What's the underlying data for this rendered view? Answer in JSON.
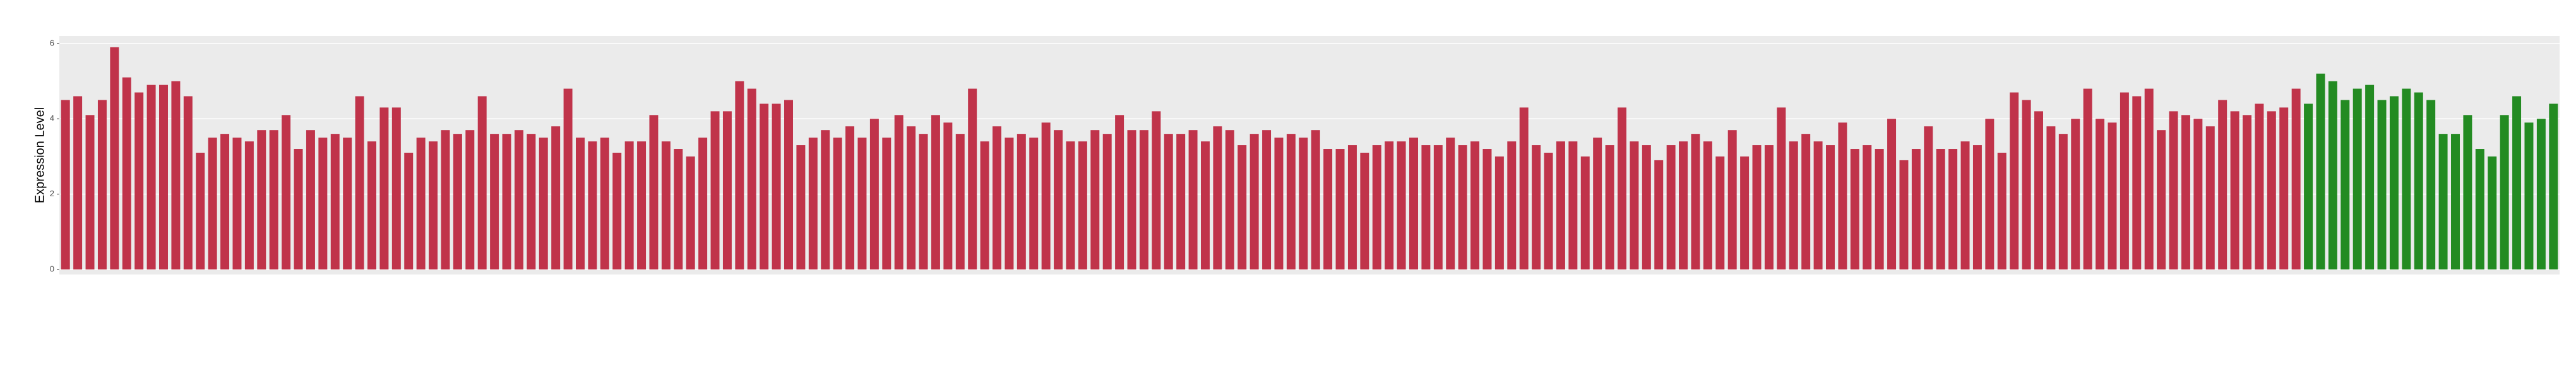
{
  "chart_data": {
    "type": "bar",
    "y_label": "Expression Level",
    "categories": [
      null,
      null,
      null,
      null,
      null,
      null,
      null,
      null,
      null,
      null,
      null,
      null,
      null,
      null,
      null,
      null,
      null,
      null,
      null,
      null,
      null,
      null,
      null,
      null,
      null,
      null,
      null,
      null,
      null,
      null,
      null,
      null,
      null,
      null,
      null,
      null,
      null,
      null,
      null,
      null,
      null,
      null,
      null,
      null,
      null,
      null,
      null,
      null,
      null,
      null,
      null,
      null,
      null,
      null,
      null,
      null,
      null,
      null,
      null,
      null,
      null,
      null,
      null,
      null,
      null,
      null,
      null,
      null,
      null,
      null,
      null,
      null,
      null,
      null,
      null,
      null,
      null,
      null,
      null,
      null,
      null,
      null,
      null,
      null,
      null,
      null,
      null,
      null,
      null,
      null,
      null,
      null,
      null,
      null,
      null,
      null,
      null,
      null,
      null,
      null,
      null,
      null,
      null,
      null,
      null,
      null,
      null,
      null,
      null,
      null,
      null,
      null,
      null,
      null,
      null,
      null,
      null,
      null,
      null,
      null,
      null,
      null,
      null,
      null,
      null,
      null,
      null,
      null,
      null,
      null,
      null,
      null,
      null,
      null,
      null,
      null,
      null,
      null,
      null,
      null,
      null,
      null,
      null,
      null,
      null,
      null,
      null,
      null,
      null,
      null,
      null,
      null,
      null,
      null,
      null,
      null,
      null,
      null,
      null,
      null,
      null,
      null,
      null,
      null,
      null,
      null,
      null,
      null,
      null,
      null,
      null,
      null,
      null,
      null,
      null,
      null,
      null,
      null,
      null,
      null,
      null,
      null,
      null,
      null,
      null,
      null,
      null,
      null,
      null,
      null,
      null,
      null,
      null,
      null,
      null,
      null,
      null,
      null,
      null,
      null,
      null,
      null,
      null,
      null
    ],
    "series": [
      {
        "color": "#c0334a",
        "values": [
          4.5,
          4.6,
          4.1,
          4.5,
          5.9,
          5.1,
          4.7,
          4.9,
          4.9,
          5.0,
          4.6,
          3.1,
          3.5,
          3.6,
          3.5,
          3.4,
          3.7,
          3.7,
          4.1,
          3.2,
          3.7,
          3.5,
          3.6,
          3.5,
          4.6,
          3.4,
          4.3,
          4.3,
          3.1,
          3.5,
          3.4,
          3.7,
          3.6,
          3.7,
          4.6,
          3.6,
          3.6,
          3.7,
          3.6,
          3.5,
          3.8,
          4.8,
          3.5,
          3.4,
          3.5,
          3.1,
          3.4,
          3.4,
          4.1,
          3.4,
          3.2,
          3.0,
          3.5,
          4.2,
          4.2,
          5.0,
          4.8,
          4.4,
          4.4,
          4.5,
          3.3,
          3.5,
          3.7,
          3.5,
          3.8,
          3.5,
          4.0,
          3.5,
          4.1,
          3.8,
          3.6,
          4.1,
          3.9,
          3.6,
          4.8,
          3.4,
          3.8,
          3.5,
          3.6,
          3.5,
          3.9,
          3.7,
          3.4,
          3.4,
          3.7,
          3.6,
          4.1,
          3.7,
          3.7,
          4.2,
          3.6,
          3.6,
          3.7,
          3.4,
          3.8,
          3.7,
          3.3,
          3.6,
          3.7,
          3.5,
          3.6,
          3.5,
          3.7,
          3.2,
          3.2,
          3.3,
          3.1,
          3.3,
          3.4,
          3.4,
          3.5,
          3.3,
          3.3,
          3.5,
          3.3,
          3.4,
          3.2,
          3.0,
          3.4,
          4.3,
          3.3,
          3.1,
          3.4,
          3.4,
          3.0,
          3.5,
          3.3,
          4.3,
          3.4,
          3.3,
          2.9,
          3.3,
          3.4,
          3.6,
          3.4,
          3.0,
          3.7,
          3.0,
          3.3,
          3.3,
          4.3,
          3.4,
          3.6,
          3.4,
          3.3,
          3.9,
          3.2,
          3.3,
          3.2,
          4.0,
          2.9,
          3.2,
          3.8,
          3.2,
          3.2,
          3.4,
          3.3,
          4.0,
          3.1,
          4.7,
          4.5,
          4.2,
          3.8,
          3.6,
          4.0,
          4.8,
          4.0,
          3.9,
          4.7,
          4.6,
          4.8,
          3.7,
          4.2,
          4.1,
          4.0,
          3.8,
          4.5,
          4.2,
          4.1,
          4.4,
          4.2,
          4.3,
          4.8,
          null,
          null,
          null,
          null,
          null,
          null,
          null,
          null,
          null,
          null,
          null,
          null,
          null,
          null,
          null,
          null,
          null,
          null,
          null,
          null,
          null
        ]
      },
      {
        "color": "#238b22",
        "values": [
          null,
          null,
          null,
          null,
          null,
          null,
          null,
          null,
          null,
          null,
          null,
          null,
          null,
          null,
          null,
          null,
          null,
          null,
          null,
          null,
          null,
          null,
          null,
          null,
          null,
          null,
          null,
          null,
          null,
          null,
          null,
          null,
          null,
          null,
          null,
          null,
          null,
          null,
          null,
          null,
          null,
          null,
          null,
          null,
          null,
          null,
          null,
          null,
          null,
          null,
          null,
          null,
          null,
          null,
          null,
          null,
          null,
          null,
          null,
          null,
          null,
          null,
          null,
          null,
          null,
          null,
          null,
          null,
          null,
          null,
          null,
          null,
          null,
          null,
          null,
          null,
          null,
          null,
          null,
          null,
          null,
          null,
          null,
          null,
          null,
          null,
          null,
          null,
          null,
          null,
          null,
          null,
          null,
          null,
          null,
          null,
          null,
          null,
          null,
          null,
          null,
          null,
          null,
          null,
          null,
          null,
          null,
          null,
          null,
          null,
          null,
          null,
          null,
          null,
          null,
          null,
          null,
          null,
          null,
          null,
          null,
          null,
          null,
          null,
          null,
          null,
          null,
          null,
          null,
          null,
          null,
          null,
          null,
          null,
          null,
          null,
          null,
          null,
          null,
          null,
          null,
          null,
          null,
          null,
          null,
          null,
          null,
          null,
          null,
          null,
          null,
          null,
          null,
          null,
          null,
          null,
          null,
          null,
          null,
          null,
          null,
          null,
          null,
          null,
          null,
          null,
          null,
          null,
          null,
          null,
          null,
          null,
          null,
          null,
          null,
          null,
          null,
          null,
          null,
          null,
          null,
          null,
          null,
          4.4,
          5.2,
          5.0,
          4.5,
          4.8,
          4.9,
          4.5,
          4.6,
          4.8,
          4.7,
          4.5,
          3.6,
          3.6,
          4.1,
          3.2,
          3.0,
          4.1,
          4.6,
          3.9,
          4.0,
          4.4
        ]
      }
    ],
    "ylim": [
      0,
      6.2
    ],
    "yticks": [
      0,
      2,
      4,
      6
    ],
    "grid": true
  }
}
